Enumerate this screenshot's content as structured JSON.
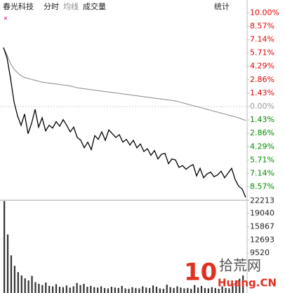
{
  "header": {
    "stock": "春光科技",
    "mode": "分时",
    "avg_toggle": "均线",
    "volume_toggle": "成交量",
    "stats": "统计"
  },
  "watermark": {
    "logo": "10",
    "name": "拾荒网",
    "site": "Huang.CN"
  },
  "chart_data": [
    {
      "type": "line",
      "ylim": [
        -10,
        10
      ],
      "up_color": "#e00000",
      "down_color": "#008800",
      "flat_color": "#999999",
      "yticks": [
        {
          "value": 10,
          "label": "10.00%"
        },
        {
          "value": 8.57,
          "label": "8.57%"
        },
        {
          "value": 7.14,
          "label": "7.14%"
        },
        {
          "value": 5.71,
          "label": "5.71%"
        },
        {
          "value": 4.29,
          "label": "4.29%"
        },
        {
          "value": 2.86,
          "label": "2.86%"
        },
        {
          "value": 1.43,
          "label": "1.43%"
        },
        {
          "value": 0,
          "label": "0.00%"
        },
        {
          "value": -1.43,
          "label": "1.43%"
        },
        {
          "value": -2.86,
          "label": "2.86%"
        },
        {
          "value": -4.29,
          "label": "4.29%"
        },
        {
          "value": -5.71,
          "label": "5.71%"
        },
        {
          "value": -7.14,
          "label": "7.14%"
        },
        {
          "value": -8.57,
          "label": "8.57%"
        }
      ],
      "series": [
        {
          "name": "分时",
          "color": "#000000",
          "values": [
            6.3,
            5.2,
            3.0,
            0.5,
            -1.0,
            -2.0,
            -0.8,
            -2.9,
            -1.8,
            -0.3,
            -2.2,
            -1.2,
            -2.6,
            -2.0,
            -2.3,
            -1.6,
            -2.1,
            -1.4,
            -2.0,
            -2.7,
            -2.2,
            -3.3,
            -3.6,
            -4.4,
            -3.8,
            -4.6,
            -3.1,
            -3.5,
            -2.7,
            -3.6,
            -2.5,
            -2.9,
            -3.3,
            -3.0,
            -3.8,
            -3.5,
            -4.1,
            -3.6,
            -4.4,
            -4.0,
            -4.8,
            -4.5,
            -5.2,
            -4.7,
            -5.6,
            -5.1,
            -5.0,
            -6.1,
            -5.6,
            -5.7,
            -6.5,
            -6.3,
            -6.7,
            -6.4,
            -6.2,
            -7.4,
            -6.6,
            -7.6,
            -7.2,
            -7.0,
            -7.5,
            -7.3,
            -6.9,
            -7.6,
            -7.1,
            -6.6,
            -7.8,
            -8.5,
            -8.8,
            -9.7
          ]
        },
        {
          "name": "均线",
          "color": "#888888",
          "values": [
            6.3,
            5.5,
            4.6,
            4.0,
            3.6,
            3.3,
            3.1,
            3.0,
            2.9,
            2.8,
            2.7,
            2.6,
            2.55,
            2.5,
            2.45,
            2.4,
            2.35,
            2.3,
            2.25,
            2.2,
            2.1,
            2.0,
            1.95,
            1.9,
            1.85,
            1.8,
            1.75,
            1.7,
            1.65,
            1.6,
            1.55,
            1.5,
            1.45,
            1.4,
            1.35,
            1.3,
            1.25,
            1.2,
            1.15,
            1.1,
            1.05,
            1.0,
            0.95,
            0.9,
            0.85,
            0.8,
            0.75,
            0.7,
            0.65,
            0.6,
            0.5,
            0.4,
            0.3,
            0.2,
            0.1,
            0.0,
            -0.1,
            -0.2,
            -0.3,
            -0.4,
            -0.5,
            -0.6,
            -0.7,
            -0.8,
            -0.9,
            -1.0,
            -1.1,
            -1.2,
            -1.35,
            -1.5
          ]
        }
      ]
    },
    {
      "type": "bar",
      "ylim": [
        0,
        22213
      ],
      "yticks": [
        22213,
        19040,
        15867,
        12693,
        9520
      ],
      "color": "#333333",
      "values": [
        22000,
        14000,
        9000,
        6500,
        5000,
        4200,
        3500,
        3000,
        4100,
        2600,
        2200,
        1900,
        2500,
        1700,
        1600,
        2100,
        1500,
        1400,
        1800,
        1300,
        1600,
        2400,
        1900,
        2200,
        1500,
        1700,
        1400,
        1300,
        1600,
        1200,
        1100,
        1500,
        1300,
        1200,
        1700,
        1100,
        1000,
        1400,
        1200,
        1100,
        1600,
        1300,
        1200,
        1800,
        1500,
        1100,
        1000,
        2000,
        1400,
        1200,
        1600,
        1300,
        1100,
        1200,
        1000,
        1900,
        1300,
        1700,
        1200,
        1100,
        1400,
        1200,
        1000,
        1600,
        1200,
        1100,
        2300,
        2800,
        3400,
        4200
      ]
    }
  ]
}
